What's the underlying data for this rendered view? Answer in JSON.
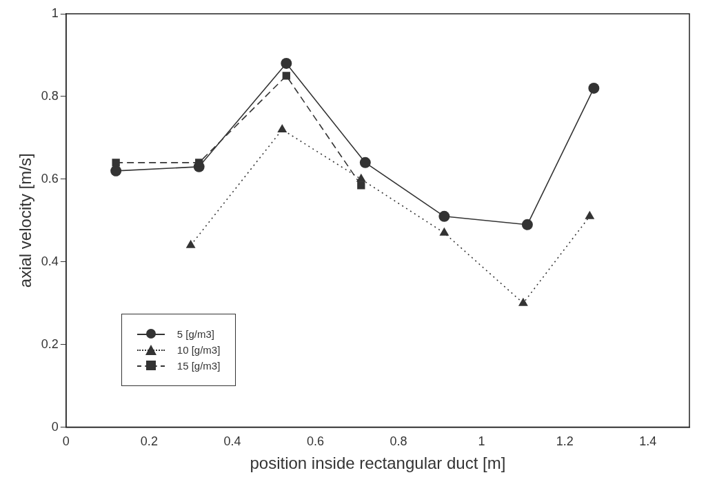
{
  "chart_data": {
    "type": "line",
    "xlabel": "position inside rectangular duct [m]",
    "ylabel": "axial velocity [m/s]",
    "xlim": [
      0,
      1.5
    ],
    "xticks": [
      0,
      0.2,
      0.4,
      0.6,
      0.8,
      1,
      1.2,
      1.4
    ],
    "ylim": [
      0,
      1
    ],
    "yticks": [
      0,
      0.2,
      0.4,
      0.6,
      0.8,
      1
    ],
    "grid": false,
    "legend": "bottom left",
    "series": [
      {
        "name": "5 [g/m3]",
        "color": "#333333",
        "marker": "circle",
        "line_style": "solid",
        "x": [
          0.12,
          0.32,
          0.53,
          0.72,
          0.91,
          1.11,
          1.27
        ],
        "values": [
          0.62,
          0.63,
          0.88,
          0.64,
          0.51,
          0.49,
          0.82
        ]
      },
      {
        "name": "10 [g/m3]",
        "color": "#333333",
        "marker": "triangle",
        "line_style": "dotted",
        "x": [
          0.3,
          0.52,
          0.71,
          0.91,
          1.1,
          1.26
        ],
        "values": [
          0.44,
          0.72,
          0.6,
          0.47,
          0.3,
          0.51
        ]
      },
      {
        "name": "15 [g/m3]",
        "color": "#333333",
        "marker": "square",
        "line_style": "dashed",
        "x": [
          0.12,
          0.32,
          0.53,
          0.71
        ],
        "values": [
          0.64,
          0.64,
          0.85,
          0.585
        ]
      }
    ]
  }
}
